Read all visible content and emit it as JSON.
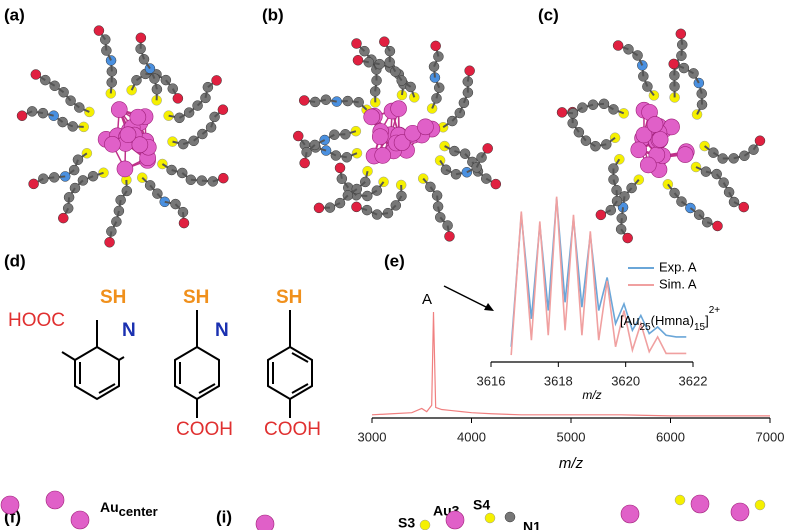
{
  "panels": {
    "a": "(a)",
    "b": "(b)",
    "c": "(c)",
    "d": "(d)",
    "e": "(e)",
    "f": "(f)",
    "i": "(i)"
  },
  "structures": [
    {
      "thiol": "SH",
      "acid": "HOOC",
      "nitrogen": "N"
    },
    {
      "thiol": "SH",
      "acid": "COOH",
      "nitrogen": "N"
    },
    {
      "thiol": "SH",
      "acid": "COOH"
    }
  ],
  "bottom_labels": {
    "au_center": [
      "Au",
      "center"
    ],
    "au3": "Au3",
    "s4": "S4",
    "s3": "S3",
    "n1": "N1"
  },
  "chart_data": [
    {
      "type": "line",
      "xlabel": "m/z",
      "annotation": "A",
      "color": "#f08080",
      "x": [
        3000,
        3200,
        3400,
        3500,
        3550,
        3600,
        3618,
        3640,
        3700,
        3800,
        3900,
        4000,
        4200,
        4500,
        5000,
        5500,
        6000,
        6500,
        7000
      ],
      "values": [
        3,
        4,
        5,
        9,
        6,
        12,
        100,
        10,
        8,
        7,
        6,
        5,
        4,
        3,
        3,
        3,
        2,
        2,
        2
      ],
      "xlim": [
        3000,
        7000
      ],
      "ylim": [
        0,
        100
      ],
      "xticks": [
        3000,
        4000,
        5000,
        6000,
        7000
      ]
    },
    {
      "type": "line",
      "xlabel": "m/z",
      "label_parts": [
        "[Au",
        "25",
        "(Hmna)",
        "15",
        "]",
        "2+"
      ],
      "x": [
        3616.6,
        3616.9,
        3617.2,
        3617.45,
        3617.7,
        3617.95,
        3618.2,
        3618.45,
        3618.7,
        3618.95,
        3619.2,
        3619.45,
        3619.7,
        3619.95,
        3620.2,
        3620.45,
        3620.7,
        3620.95,
        3621.2,
        3621.5,
        3621.8
      ],
      "series": [
        {
          "name": "Exp. A",
          "color": "#6aa6d8",
          "values": [
            8,
            88,
            25,
            82,
            30,
            98,
            35,
            86,
            32,
            76,
            30,
            50,
            22,
            34,
            18,
            27,
            16,
            20,
            15,
            14,
            14
          ]
        },
        {
          "name": "Sim. A",
          "color": "#f0a0a0",
          "values": [
            3,
            90,
            12,
            84,
            15,
            99,
            18,
            88,
            15,
            78,
            12,
            48,
            8,
            30,
            6,
            22,
            5,
            14,
            4,
            4,
            4
          ]
        }
      ],
      "xlim": [
        3616,
        3622
      ],
      "ylim": [
        0,
        100
      ],
      "xticks": [
        3616,
        3618,
        3620,
        3622
      ]
    }
  ]
}
